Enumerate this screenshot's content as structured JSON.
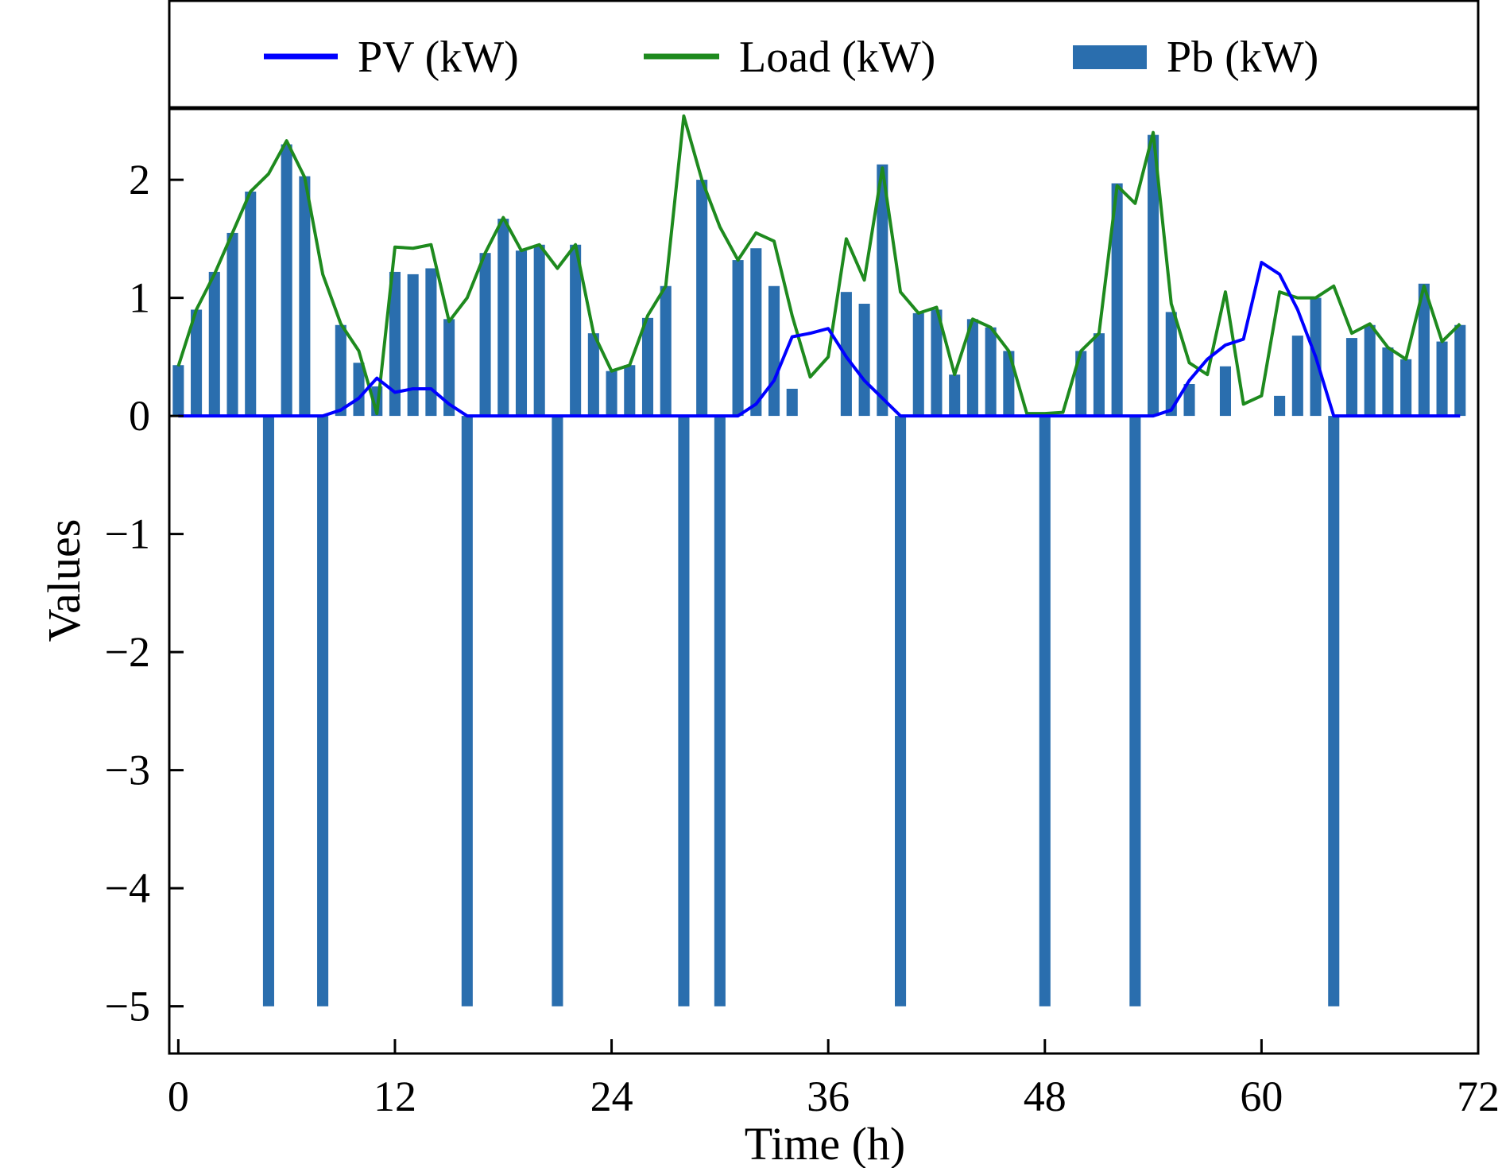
{
  "chart_data": {
    "type": "bar",
    "xlabel": "Time (h)",
    "ylabel": "Values",
    "xlim": [
      -0.5,
      72
    ],
    "ylim": [
      -5.4,
      2.6
    ],
    "xticks": [
      0,
      12,
      24,
      36,
      48,
      60,
      72
    ],
    "yticks": [
      -5,
      -4,
      -3,
      -2,
      -1,
      0,
      1,
      2
    ],
    "ytick_labels": [
      "−5",
      "−4",
      "−3",
      "−2",
      "−1",
      "0",
      "1",
      "2"
    ],
    "grid": false,
    "legend_position": "top",
    "x": [
      0,
      1,
      2,
      3,
      4,
      5,
      6,
      7,
      8,
      9,
      10,
      11,
      12,
      13,
      14,
      15,
      16,
      17,
      18,
      19,
      20,
      21,
      22,
      23,
      24,
      25,
      26,
      27,
      28,
      29,
      30,
      31,
      32,
      33,
      34,
      35,
      36,
      37,
      38,
      39,
      40,
      41,
      42,
      43,
      44,
      45,
      46,
      47,
      48,
      49,
      50,
      51,
      52,
      53,
      54,
      55,
      56,
      57,
      58,
      59,
      60,
      61,
      62,
      63,
      64,
      65,
      66,
      67,
      68,
      69,
      70,
      71
    ],
    "series": [
      {
        "name": "PV (kW)",
        "kind": "line",
        "color": "#0000ff",
        "values": [
          0,
          0,
          0,
          0,
          0,
          0,
          0,
          0,
          0,
          0.05,
          0.15,
          0.32,
          0.2,
          0.23,
          0.23,
          0.1,
          0,
          0,
          0,
          0,
          0,
          0,
          0,
          0,
          0,
          0,
          0,
          0,
          0,
          0,
          0,
          0,
          0.1,
          0.3,
          0.67,
          0.7,
          0.74,
          0.5,
          0.3,
          0.15,
          0,
          0,
          0,
          0,
          0,
          0,
          0,
          0,
          0,
          0,
          0,
          0,
          0,
          0,
          0,
          0.05,
          0.3,
          0.48,
          0.6,
          0.65,
          1.3,
          1.2,
          0.9,
          0.5,
          0,
          0,
          0,
          0,
          0,
          0,
          0,
          0
        ]
      },
      {
        "name": "Load (kW)",
        "kind": "line",
        "color": "#1e8a1e",
        "values": [
          0.42,
          0.9,
          1.2,
          1.55,
          1.9,
          2.05,
          2.33,
          2.02,
          1.2,
          0.78,
          0.55,
          0.02,
          1.43,
          1.42,
          1.45,
          0.8,
          1.0,
          1.38,
          1.68,
          1.4,
          1.45,
          1.25,
          1.45,
          0.7,
          0.38,
          0.43,
          0.85,
          1.1,
          2.54,
          2.0,
          1.6,
          1.32,
          1.55,
          1.48,
          0.85,
          0.33,
          0.5,
          1.5,
          1.15,
          2.1,
          1.05,
          0.87,
          0.92,
          0.35,
          0.82,
          0.75,
          0.55,
          0.02,
          0.02,
          0.03,
          0.55,
          0.7,
          1.95,
          1.8,
          2.4,
          0.95,
          0.45,
          0.35,
          1.05,
          0.1,
          0.17,
          1.05,
          1.0,
          1.0,
          1.1,
          0.7,
          0.78,
          0.58,
          0.48,
          1.1,
          0.63,
          0.78
        ]
      },
      {
        "name": "Pb (kW)",
        "kind": "bar",
        "color": "#2a6eae",
        "values": [
          0.43,
          0.9,
          1.22,
          1.55,
          1.9,
          -5,
          2.3,
          2.03,
          -5,
          0.77,
          0.45,
          0.25,
          1.22,
          1.2,
          1.25,
          0.82,
          -5,
          1.38,
          1.67,
          1.4,
          1.45,
          -5,
          1.45,
          0.7,
          0.38,
          0.43,
          0.83,
          1.1,
          -5,
          2.0,
          -5,
          1.32,
          1.42,
          1.1,
          0.23,
          0,
          0,
          1.05,
          0.95,
          2.13,
          -5,
          0.87,
          0.9,
          0.35,
          0.82,
          0.75,
          0.55,
          0,
          -5,
          0,
          0.55,
          0.7,
          1.97,
          -5,
          2.38,
          0.88,
          0.27,
          0,
          0.42,
          0,
          0,
          0.17,
          0.68,
          1.0,
          -5,
          0.66,
          0.77,
          0.58,
          0.48,
          1.12,
          0.63,
          0.77
        ]
      }
    ]
  }
}
